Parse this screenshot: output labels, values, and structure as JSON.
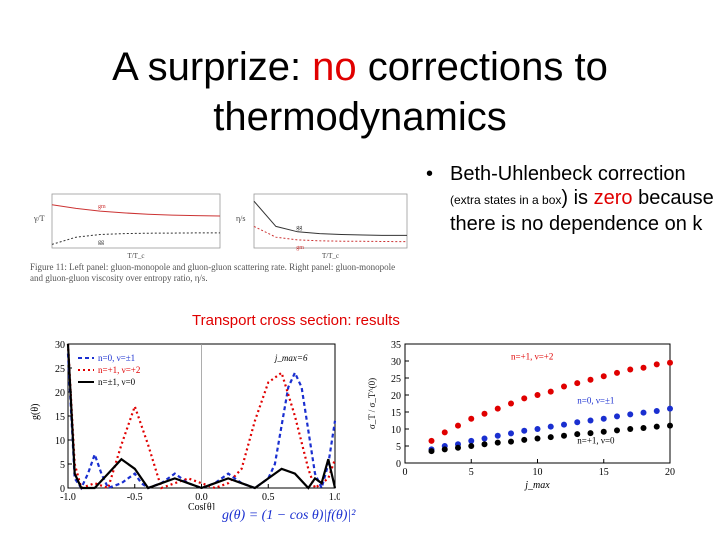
{
  "slide": {
    "title_part1": "A surprize: ",
    "title_accent": "no",
    "title_part2": " corrections to thermodynamics",
    "accent_color": "#e00000"
  },
  "bullet": {
    "symbol": "•",
    "line_a": "Beth-Uhlenbeck correction ",
    "small_note": "(extra states in a box",
    "line_b": ") is ",
    "zero_word": "zero",
    "line_c": " because there is no dependence on k"
  },
  "caption": {
    "text": "Figure 11: Left panel: gluon-monopole and gluon-gluon scattering rate. Right panel: gluon-monopole and gluon-gluon viscosity over entropy ratio, η/s."
  },
  "transport": {
    "title": "Transport cross section: results",
    "formula": "g(θ) = (1 − cos θ)|f(θ)|²"
  },
  "chart_data": [
    {
      "type": "line",
      "panel": "top-left",
      "xlabel": "T/T_c",
      "ylabel": "γ/T",
      "series": [
        {
          "name": "gm",
          "values": [
            2.4,
            2.2,
            2.05,
            1.95,
            1.88,
            1.83,
            1.8,
            1.78
          ]
        },
        {
          "name": "gg",
          "values": [
            0.2,
            0.6,
            0.75,
            0.8,
            0.82,
            0.83,
            0.84,
            0.84
          ]
        }
      ],
      "ylim": [
        0,
        3
      ]
    },
    {
      "type": "line",
      "panel": "top-right",
      "xlabel": "T/T_c",
      "ylabel": "η/s",
      "series": [
        {
          "name": "gg",
          "values": [
            2.6,
            1.2,
            0.9,
            0.8,
            0.75,
            0.72,
            0.7,
            0.7
          ]
        },
        {
          "name": "gm",
          "values": [
            1.2,
            0.6,
            0.45,
            0.4,
            0.38,
            0.37,
            0.36,
            0.35
          ]
        }
      ],
      "ylim": [
        0,
        3
      ]
    },
    {
      "type": "line",
      "panel": "bottom-left",
      "xlabel": "Cos[θ]",
      "ylabel": "g(θ)",
      "annotation": "j_max=6",
      "xticks": [
        "-1.0",
        "-0.5",
        "0.0",
        "0.5",
        "1.0"
      ],
      "yticks": [
        "0",
        "5",
        "10",
        "15",
        "20",
        "25",
        "30"
      ],
      "xlim": [
        -1,
        1
      ],
      "ylim": [
        0,
        30
      ],
      "series": [
        {
          "name": "n=0, ν=±1",
          "color": "#1a2fd0",
          "x": [
            -1.0,
            -0.95,
            -0.9,
            -0.85,
            -0.8,
            -0.75,
            -0.7,
            -0.6,
            -0.5,
            -0.45,
            -0.4,
            -0.3,
            -0.2,
            -0.1,
            0.0,
            0.1,
            0.2,
            0.3,
            0.4,
            0.5,
            0.55,
            0.6,
            0.65,
            0.7,
            0.75,
            0.8,
            0.85,
            0.9,
            0.95,
            1.0
          ],
          "y": [
            28,
            2,
            0,
            3,
            7,
            3,
            0,
            1,
            3,
            1,
            0,
            1,
            3,
            1,
            0,
            1,
            3,
            1,
            0,
            2,
            5,
            13,
            21,
            24,
            21,
            12,
            3,
            0,
            5,
            14
          ]
        },
        {
          "name": "n=+1, ν=+2",
          "color": "#e00000",
          "x": [
            -1.0,
            -0.95,
            -0.9,
            -0.8,
            -0.7,
            -0.6,
            -0.5,
            -0.4,
            -0.3,
            -0.2,
            -0.1,
            0.0,
            0.1,
            0.2,
            0.3,
            0.4,
            0.5,
            0.6,
            0.7,
            0.8,
            0.85,
            0.9,
            0.95,
            1.0
          ],
          "y": [
            30,
            5,
            0,
            1,
            0,
            9,
            17,
            9,
            0,
            1,
            2,
            1,
            0,
            1,
            4,
            14,
            22,
            24,
            15,
            4,
            0,
            1,
            2,
            6
          ]
        },
        {
          "name": "n=±1, ν=0",
          "color": "#000000",
          "x": [
            -1.0,
            -0.95,
            -0.9,
            -0.8,
            -0.7,
            -0.6,
            -0.5,
            -0.4,
            -0.3,
            -0.2,
            -0.1,
            0.0,
            0.1,
            0.2,
            0.3,
            0.4,
            0.5,
            0.6,
            0.7,
            0.8,
            0.85,
            0.9,
            0.95,
            1.0
          ],
          "y": [
            30,
            3,
            0,
            0,
            3,
            6,
            4,
            0,
            1,
            2,
            1,
            0,
            1,
            2,
            1,
            0,
            2,
            4,
            3,
            0,
            2,
            1,
            6,
            0
          ]
        }
      ]
    },
    {
      "type": "scatter",
      "panel": "bottom-right",
      "xlabel": "j_max",
      "ylabel": "σ_T / σ_T^(0)",
      "xticks": [
        "0",
        "5",
        "10",
        "15",
        "20"
      ],
      "yticks": [
        "0",
        "5",
        "10",
        "15",
        "20",
        "25",
        "30",
        "35"
      ],
      "xlim": [
        0,
        20
      ],
      "ylim": [
        0,
        35
      ],
      "series": [
        {
          "name": "n=+1, ν=+2",
          "color": "#e00000",
          "x": [
            2,
            3,
            4,
            5,
            6,
            7,
            8,
            9,
            10,
            11,
            12,
            13,
            14,
            15,
            16,
            17,
            18,
            19,
            20
          ],
          "y": [
            6.5,
            9,
            11,
            13,
            14.5,
            16,
            17.5,
            19,
            20,
            21,
            22.5,
            23.5,
            24.5,
            25.5,
            26.5,
            27.5,
            28,
            29,
            29.5
          ]
        },
        {
          "name": "n=0, ν=±1",
          "color": "#1a2fd0",
          "x": [
            2,
            3,
            4,
            5,
            6,
            7,
            8,
            9,
            10,
            11,
            12,
            13,
            14,
            15,
            16,
            17,
            18,
            19,
            20
          ],
          "y": [
            4,
            5,
            5.5,
            6.5,
            7.2,
            8,
            8.7,
            9.5,
            10,
            10.7,
            11.3,
            12,
            12.5,
            13,
            13.7,
            14.3,
            14.8,
            15.3,
            16
          ]
        },
        {
          "name": "n=+1, ν=0",
          "color": "#000000",
          "x": [
            2,
            3,
            4,
            5,
            6,
            7,
            8,
            9,
            10,
            11,
            12,
            13,
            14,
            15,
            16,
            17,
            18,
            19,
            20
          ],
          "y": [
            3.5,
            4,
            4.5,
            5,
            5.5,
            6,
            6.3,
            6.8,
            7.2,
            7.6,
            8,
            8.5,
            8.8,
            9.2,
            9.6,
            10,
            10.3,
            10.7,
            11
          ]
        }
      ]
    }
  ]
}
